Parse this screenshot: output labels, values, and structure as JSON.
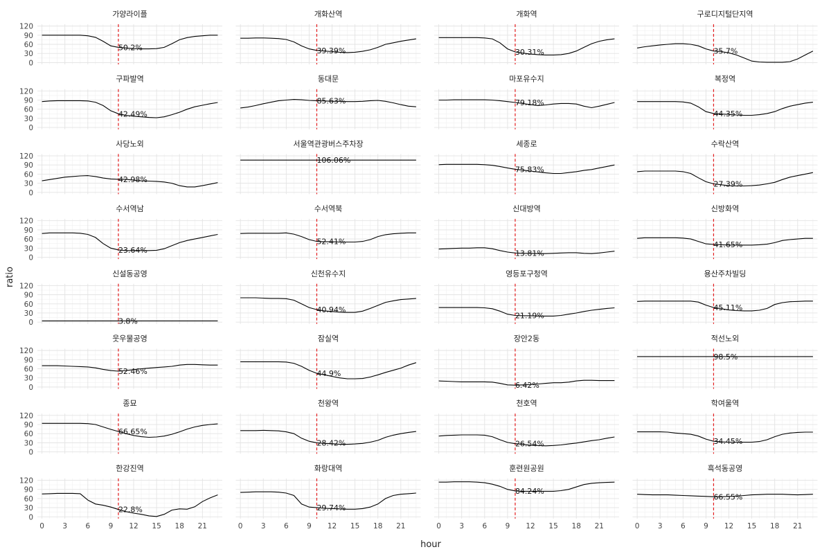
{
  "chart_data": {
    "type": "line",
    "facet_layout": "8 rows x 4 columns",
    "xlabel": "hour",
    "ylabel": "ratio",
    "xlim": [
      0,
      23
    ],
    "ylim": [
      0,
      120
    ],
    "x_ticks": [
      0,
      3,
      6,
      9,
      12,
      15,
      18,
      21
    ],
    "y_ticks": [
      0,
      30,
      60,
      90,
      120
    ],
    "reference_line": {
      "x": 10,
      "color": "#e41a1c",
      "style": "dashed"
    },
    "line_color": "#000000",
    "grid": true,
    "x": [
      0,
      1,
      2,
      3,
      4,
      5,
      6,
      7,
      8,
      9,
      10,
      11,
      12,
      13,
      14,
      15,
      16,
      17,
      18,
      19,
      20,
      21,
      22,
      23
    ],
    "panels": [
      {
        "title": "가양라이플",
        "label": "50.2%",
        "values": [
          90,
          90,
          90,
          90,
          90,
          90,
          88,
          83,
          70,
          55,
          50,
          48,
          46,
          45,
          45,
          46,
          50,
          62,
          75,
          82,
          86,
          88,
          90,
          90
        ]
      },
      {
        "title": "개화산역",
        "label": "39.39%",
        "values": [
          80,
          80,
          81,
          81,
          80,
          79,
          76,
          68,
          55,
          45,
          40,
          38,
          36,
          34,
          33,
          34,
          37,
          42,
          50,
          60,
          65,
          70,
          74,
          78
        ]
      },
      {
        "title": "개화역",
        "label": "30.31%",
        "values": [
          82,
          82,
          82,
          82,
          82,
          82,
          81,
          78,
          65,
          45,
          35,
          31,
          28,
          26,
          25,
          25,
          26,
          30,
          38,
          50,
          62,
          70,
          75,
          78
        ]
      },
      {
        "title": "구로디지털단지역",
        "label": "35.7%",
        "values": [
          48,
          52,
          55,
          58,
          60,
          62,
          62,
          60,
          55,
          45,
          38,
          36,
          32,
          25,
          15,
          5,
          2,
          1,
          1,
          1,
          3,
          12,
          25,
          38
        ]
      },
      {
        "title": "구파발역",
        "label": "42.49%",
        "values": [
          85,
          87,
          88,
          88,
          88,
          88,
          87,
          83,
          72,
          55,
          45,
          40,
          37,
          35,
          33,
          32,
          35,
          42,
          50,
          60,
          68,
          73,
          78,
          82
        ]
      },
      {
        "title": "동대문",
        "label": "85.63%",
        "values": [
          64,
          67,
          72,
          78,
          83,
          88,
          90,
          92,
          91,
          89,
          88,
          87,
          86,
          86,
          85,
          85,
          86,
          88,
          89,
          86,
          81,
          75,
          70,
          68
        ]
      },
      {
        "title": "마포유수지",
        "label": "79.18%",
        "values": [
          90,
          90,
          91,
          91,
          91,
          91,
          91,
          90,
          88,
          85,
          82,
          79,
          75,
          72,
          74,
          77,
          79,
          79,
          77,
          70,
          65,
          70,
          76,
          82
        ]
      },
      {
        "title": "복정역",
        "label": "44.35%",
        "values": [
          85,
          85,
          85,
          85,
          85,
          85,
          84,
          80,
          68,
          52,
          46,
          44,
          43,
          41,
          40,
          40,
          42,
          46,
          52,
          62,
          70,
          75,
          80,
          83
        ]
      },
      {
        "title": "사당노외",
        "label": "42.98%",
        "values": [
          38,
          42,
          46,
          50,
          52,
          54,
          55,
          52,
          47,
          44,
          43,
          43,
          40,
          38,
          37,
          36,
          34,
          30,
          22,
          18,
          18,
          22,
          27,
          32
        ]
      },
      {
        "title": "서울역관광버스주차장",
        "label": "106.06%",
        "values": [
          106,
          106,
          106,
          106,
          106,
          106,
          106,
          106,
          106,
          106,
          106,
          106,
          106,
          106,
          106,
          106,
          106,
          106,
          106,
          106,
          106,
          106,
          106,
          106
        ]
      },
      {
        "title": "세종로",
        "label": "75.83%",
        "values": [
          91,
          92,
          92,
          92,
          92,
          92,
          91,
          89,
          85,
          80,
          76,
          73,
          70,
          67,
          64,
          62,
          62,
          65,
          68,
          72,
          75,
          80,
          85,
          90
        ]
      },
      {
        "title": "수락산역",
        "label": "27.39%",
        "values": [
          68,
          70,
          70,
          70,
          70,
          70,
          68,
          62,
          48,
          35,
          28,
          25,
          22,
          21,
          21,
          22,
          24,
          28,
          33,
          42,
          50,
          55,
          60,
          65
        ]
      },
      {
        "title": "수서역남",
        "label": "23.64%",
        "values": [
          78,
          80,
          80,
          80,
          80,
          79,
          75,
          65,
          45,
          30,
          24,
          22,
          22,
          22,
          22,
          23,
          28,
          38,
          48,
          55,
          60,
          65,
          70,
          75
        ]
      },
      {
        "title": "수서역북",
        "label": "52.41%",
        "values": [
          78,
          79,
          79,
          79,
          79,
          79,
          80,
          76,
          68,
          58,
          52,
          51,
          51,
          50,
          50,
          50,
          52,
          58,
          68,
          74,
          77,
          79,
          80,
          80
        ]
      },
      {
        "title": "신대방역",
        "label": "13.81%",
        "values": [
          27,
          28,
          29,
          30,
          30,
          31,
          31,
          28,
          22,
          17,
          14,
          13,
          13,
          12,
          12,
          13,
          14,
          15,
          15,
          13,
          12,
          14,
          17,
          20
        ]
      },
      {
        "title": "신방화역",
        "label": "41.65%",
        "values": [
          62,
          64,
          64,
          64,
          64,
          64,
          63,
          60,
          52,
          44,
          42,
          41,
          40,
          40,
          40,
          40,
          41,
          43,
          48,
          55,
          58,
          60,
          62,
          62
        ]
      },
      {
        "title": "신설동공영",
        "label": "3.8%",
        "values": [
          4,
          4,
          4,
          4,
          4,
          4,
          4,
          4,
          4,
          4,
          4,
          4,
          4,
          4,
          4,
          4,
          4,
          4,
          4,
          4,
          4,
          4,
          4,
          4
        ]
      },
      {
        "title": "신천유수지",
        "label": "40.94%",
        "values": [
          80,
          80,
          80,
          79,
          78,
          78,
          77,
          72,
          60,
          48,
          41,
          37,
          35,
          33,
          32,
          32,
          36,
          45,
          55,
          65,
          70,
          74,
          76,
          78
        ]
      },
      {
        "title": "영등포구청역",
        "label": "21.19%",
        "values": [
          48,
          48,
          48,
          48,
          48,
          48,
          47,
          44,
          36,
          26,
          22,
          21,
          21,
          20,
          20,
          20,
          22,
          26,
          30,
          35,
          39,
          42,
          45,
          47
        ]
      },
      {
        "title": "용산주차빌딩",
        "label": "45.11%",
        "values": [
          68,
          69,
          69,
          69,
          69,
          69,
          69,
          69,
          66,
          56,
          48,
          44,
          40,
          38,
          37,
          37,
          39,
          45,
          58,
          64,
          67,
          68,
          69,
          69
        ]
      },
      {
        "title": "웃우물공영",
        "label": "52.46%",
        "values": [
          70,
          70,
          70,
          69,
          68,
          67,
          66,
          63,
          58,
          54,
          52,
          54,
          57,
          60,
          62,
          64,
          66,
          68,
          72,
          74,
          74,
          73,
          72,
          72
        ]
      },
      {
        "title": "잠실역",
        "label": "44.9%",
        "values": [
          83,
          83,
          83,
          83,
          83,
          83,
          82,
          78,
          68,
          55,
          45,
          40,
          35,
          30,
          27,
          27,
          28,
          33,
          40,
          48,
          55,
          62,
          72,
          80
        ]
      },
      {
        "title": "장안2동",
        "label": "6.42%",
        "values": [
          20,
          19,
          18,
          17,
          17,
          17,
          17,
          16,
          12,
          7,
          6,
          7,
          8,
          10,
          12,
          14,
          14,
          16,
          20,
          22,
          22,
          21,
          21,
          21
        ]
      },
      {
        "title": "적선노외",
        "label": "98.5%",
        "values": [
          100,
          100,
          100,
          100,
          100,
          100,
          100,
          100,
          100,
          100,
          100,
          100,
          100,
          100,
          100,
          100,
          100,
          100,
          100,
          100,
          100,
          100,
          100,
          100
        ]
      },
      {
        "title": "종묘",
        "label": "66.65%",
        "values": [
          94,
          94,
          94,
          94,
          94,
          94,
          93,
          90,
          82,
          74,
          67,
          60,
          54,
          50,
          48,
          49,
          52,
          58,
          66,
          75,
          82,
          87,
          90,
          92
        ]
      },
      {
        "title": "천왕역",
        "label": "28.42%",
        "values": [
          70,
          70,
          70,
          71,
          70,
          69,
          66,
          60,
          45,
          35,
          30,
          28,
          27,
          25,
          25,
          26,
          28,
          32,
          38,
          48,
          55,
          60,
          64,
          67
        ]
      },
      {
        "title": "천호역",
        "label": "26.54%",
        "values": [
          52,
          54,
          55,
          56,
          56,
          56,
          55,
          50,
          40,
          31,
          27,
          25,
          22,
          21,
          20,
          21,
          23,
          26,
          29,
          33,
          37,
          40,
          45,
          49
        ]
      },
      {
        "title": "학여울역",
        "label": "34.45%",
        "values": [
          66,
          66,
          66,
          66,
          65,
          62,
          60,
          58,
          52,
          42,
          35,
          33,
          32,
          32,
          32,
          32,
          34,
          40,
          50,
          58,
          62,
          64,
          65,
          65
        ]
      },
      {
        "title": "한강진역",
        "label": "22.8%",
        "values": [
          75,
          76,
          77,
          77,
          77,
          76,
          55,
          42,
          38,
          32,
          24,
          17,
          12,
          8,
          3,
          1,
          8,
          22,
          26,
          25,
          33,
          50,
          62,
          72
        ]
      },
      {
        "title": "화랑대역",
        "label": "29.74%",
        "values": [
          80,
          81,
          82,
          82,
          82,
          81,
          78,
          70,
          42,
          32,
          30,
          28,
          27,
          26,
          25,
          25,
          27,
          32,
          42,
          60,
          70,
          74,
          76,
          78
        ]
      },
      {
        "title": "훈련원공원",
        "label": "84.24%",
        "values": [
          114,
          114,
          115,
          115,
          115,
          114,
          112,
          107,
          100,
          90,
          85,
          84,
          84,
          84,
          84,
          84,
          86,
          90,
          98,
          106,
          110,
          112,
          113,
          114
        ]
      },
      {
        "title": "흑석동공영",
        "label": "66.55%",
        "values": [
          74,
          73,
          72,
          72,
          72,
          71,
          70,
          69,
          68,
          67,
          66,
          66,
          67,
          68,
          70,
          72,
          73,
          74,
          74,
          74,
          73,
          72,
          73,
          74
        ]
      }
    ]
  }
}
